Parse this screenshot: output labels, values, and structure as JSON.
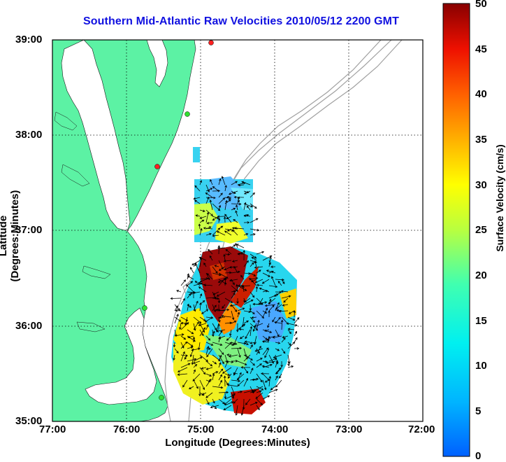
{
  "title": "Southern Mid-Atlantic Raw Velocities 2010/05/12 2200 GMT",
  "axes": {
    "xlabel": "Longitude (Degrees:Minutes)",
    "ylabel": "Latitude (Degrees:Minutes)",
    "xticks": [
      "77:00",
      "76:00",
      "75:00",
      "74:00",
      "73:00",
      "72:00"
    ],
    "yticks": [
      "39:00",
      "38:00",
      "37:00",
      "36:00",
      "35:00"
    ],
    "grid": "dotted"
  },
  "colorbar": {
    "label": "Surface Velocity (cm/s)",
    "ticks": [
      "50",
      "45",
      "40",
      "35",
      "30",
      "25",
      "20",
      "15",
      "10",
      "5",
      "0"
    ],
    "range": [
      0,
      50
    ]
  },
  "colors": {
    "land": "#5cf2a4",
    "title": "#1010e0",
    "bathymetry": "#a0a0a0"
  }
}
